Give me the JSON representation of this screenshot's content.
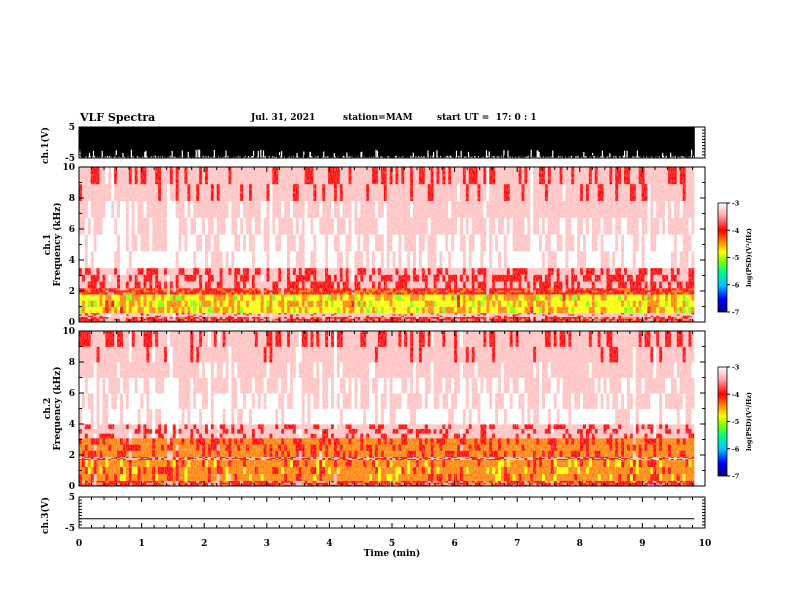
{
  "header": {
    "title": "VLF Spectra",
    "date": "Jul. 31, 2021",
    "station": "station=MAM",
    "start": "start UT =  17: 0 : 1"
  },
  "colors": {
    "axis": "#000000",
    "background": "#ffffff",
    "colormap": [
      "#000080",
      "#0000ff",
      "#00c8ff",
      "#00ff80",
      "#80ff00",
      "#ffff00",
      "#ff8000",
      "#ff0000",
      "#ffc0c0",
      "#ffffff"
    ]
  },
  "chart_data": [
    {
      "type": "line",
      "id": "ch1-waveform",
      "ylabel": "ch.1(V)",
      "ylim": [
        -5,
        5
      ],
      "yticks": [
        -5,
        5
      ],
      "xlim": [
        0,
        10
      ],
      "data_end_min": 9.83,
      "description_of_trace": "dense waveform spanning full -5 to 5 V range"
    },
    {
      "type": "heatmap",
      "id": "ch1-spectrogram",
      "ylabel_channel": "ch.1",
      "ylabel": "Frequency (kHz)",
      "ylim": [
        0,
        10
      ],
      "yticks": [
        0,
        2,
        4,
        6,
        8,
        10
      ],
      "xlim": [
        0,
        10
      ],
      "data_end_min": 9.83,
      "colorbar": {
        "label": "log(PSD)(V²/Hz)",
        "range": [
          -7,
          -3
        ],
        "ticks": [
          -3,
          -4,
          -5,
          -6,
          -7
        ]
      },
      "bands": [
        {
          "f_low": 0.0,
          "f_high": 0.35,
          "log_psd": -4.2
        },
        {
          "f_low": 0.35,
          "f_high": 0.6,
          "log_psd": -3.8
        },
        {
          "f_low": 0.6,
          "f_high": 1.8,
          "log_psd": -4.9
        },
        {
          "f_low": 1.8,
          "f_high": 2.2,
          "log_psd": -4.3
        },
        {
          "f_low": 2.2,
          "f_high": 3.5,
          "log_psd": -4.0
        },
        {
          "f_low": 3.5,
          "f_high": 10.0,
          "log_psd": -3.4
        }
      ]
    },
    {
      "type": "heatmap",
      "id": "ch2-spectrogram",
      "ylabel_channel": "ch.2",
      "ylabel": "Frequency (kHz)",
      "ylim": [
        0,
        10
      ],
      "yticks": [
        0,
        2,
        4,
        6,
        8,
        10
      ],
      "xlim": [
        0,
        10
      ],
      "data_end_min": 9.83,
      "colorbar": {
        "label": "log(PSD)(V²/Hz)",
        "range": [
          -7,
          -3
        ],
        "ticks": [
          -3,
          -4,
          -5,
          -6,
          -7
        ]
      },
      "bands": [
        {
          "f_low": 0.0,
          "f_high": 0.35,
          "log_psd": -4.2
        },
        {
          "f_low": 0.35,
          "f_high": 1.7,
          "log_psd": -4.6
        },
        {
          "f_low": 1.7,
          "f_high": 1.9,
          "log_psd": -4.0
        },
        {
          "f_low": 1.9,
          "f_high": 3.1,
          "log_psd": -4.5
        },
        {
          "f_low": 3.1,
          "f_high": 4.0,
          "log_psd": -3.9
        },
        {
          "f_low": 4.0,
          "f_high": 10.0,
          "log_psd": -3.4
        }
      ]
    },
    {
      "type": "line",
      "id": "ch3-waveform",
      "ylabel": "ch.3(V)",
      "ylim": [
        -5,
        5
      ],
      "yticks": [
        -5,
        5
      ],
      "xlim": [
        0,
        10
      ],
      "data_end_min": 9.83,
      "constant_value": -2
    }
  ],
  "xaxis": {
    "label": "Time (min)",
    "ticks": [
      0,
      1,
      2,
      3,
      4,
      5,
      6,
      7,
      8,
      9,
      10
    ]
  }
}
